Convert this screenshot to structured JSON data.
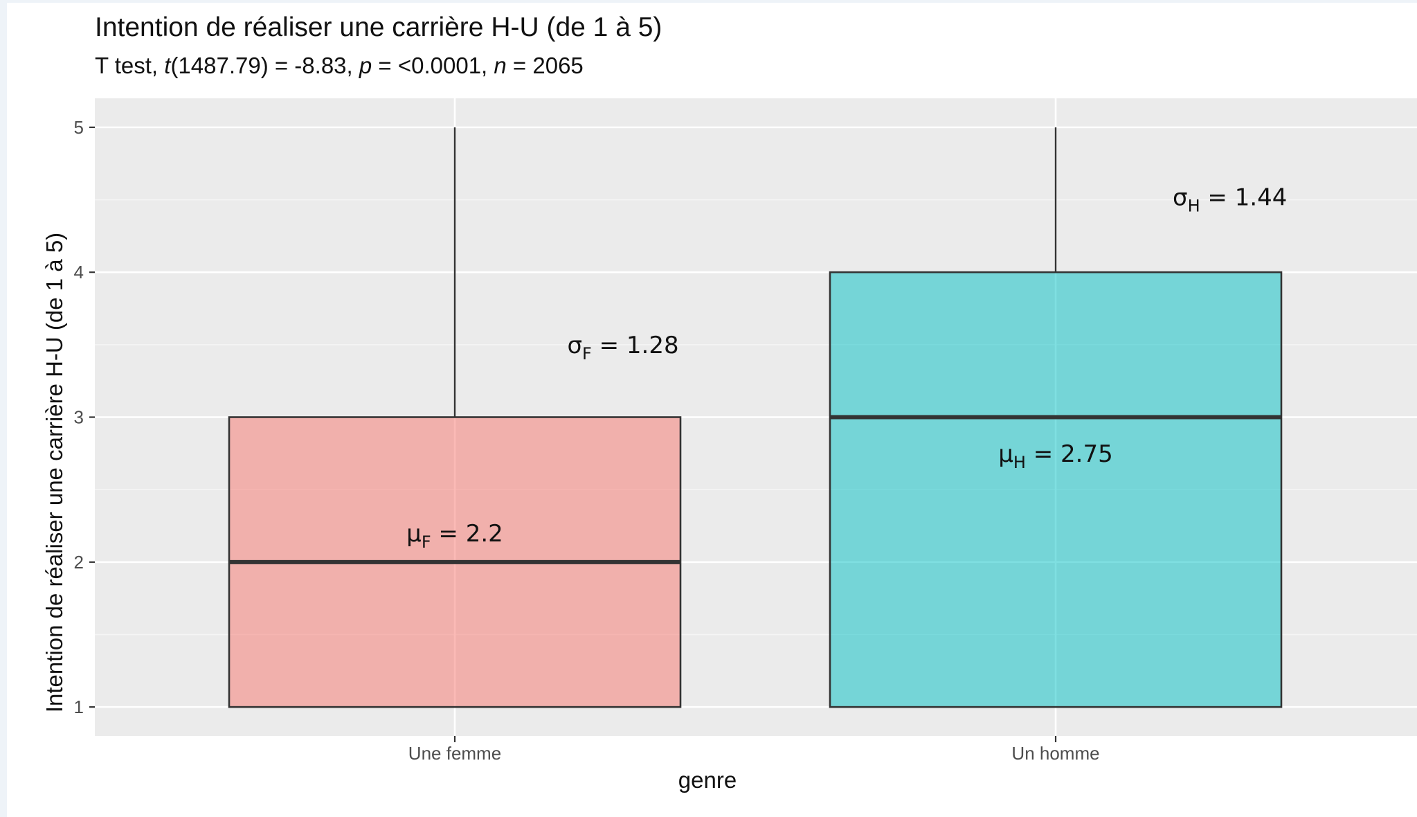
{
  "chart_data": {
    "type": "boxplot",
    "title": "Intention de réaliser une carrière H-U (de 1 à 5)",
    "subtitle": {
      "test": "T test, ",
      "t_sym": "t",
      "t_val": "(1487.79) = -8.83, ",
      "p_sym": "p",
      "p_val": " = <0.0001, ",
      "n_sym": "n",
      "n_val": " = 2065"
    },
    "xlabel": "genre",
    "ylabel": "Intention de réaliser une carrière H-U (de 1 à 5)",
    "ylim": [
      0.8,
      5.2
    ],
    "yticks": [
      "1",
      "2",
      "3",
      "4",
      "5"
    ],
    "grid": true,
    "categories": [
      "Une femme",
      "Un homme"
    ],
    "boxes": [
      {
        "category": "Une femme",
        "min": 1,
        "q1": 1,
        "median": 2,
        "q3": 3,
        "max": 5,
        "color": "#f8766d",
        "annotations": [
          {
            "sym": "μ",
            "sub": "F",
            "text": " = 2.2",
            "x": 1.0,
            "y": 2.2
          },
          {
            "sym": "σ",
            "sub": "F",
            "text": " = 1.28",
            "x": 1.28,
            "y": 3.5
          }
        ]
      },
      {
        "category": "Un homme",
        "min": 1,
        "q1": 1,
        "median": 3,
        "q3": 4,
        "max": 5,
        "color": "#00bfc4",
        "annotations": [
          {
            "sym": "μ",
            "sub": "H",
            "text": " = 2.75",
            "x": 2.0,
            "y": 2.75
          },
          {
            "sym": "σ",
            "sub": "H",
            "text": " = 1.44",
            "x": 2.29,
            "y": 4.52
          }
        ]
      }
    ]
  }
}
